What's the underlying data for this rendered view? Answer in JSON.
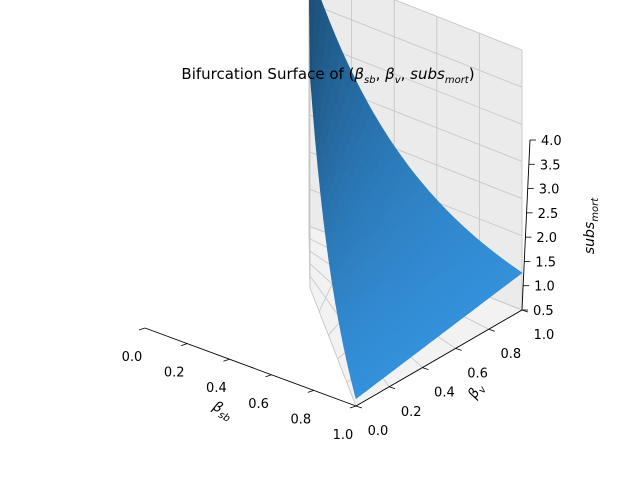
{
  "chart_data": {
    "type": "surface",
    "title": "Bifurcation Surface of (β_sb, β_v, subs_mort)",
    "title_parts": {
      "prefix": "Bifurcation Surface of (",
      "b1": "β",
      "b1_sub": "sb",
      "sep1": ", ",
      "b2": "β",
      "b2_sub": "v",
      "sep2": ", ",
      "z": "subs",
      "z_sub": "mort",
      "suffix": ")"
    },
    "xlabel": "β_sb",
    "xlabel_parts": {
      "main": "β",
      "sub": "sb"
    },
    "ylabel": "β_v",
    "ylabel_parts": {
      "main": "β",
      "sub": "v"
    },
    "zlabel": "subs_mort",
    "zlabel_parts": {
      "main": "subs",
      "sub": "mort"
    },
    "xlim": [
      0.0,
      1.0
    ],
    "ylim": [
      0.0,
      1.0
    ],
    "zlim": [
      0.5,
      4.0
    ],
    "x_ticks": [
      "0.0",
      "0.2",
      "0.4",
      "0.6",
      "0.8",
      "1.0"
    ],
    "y_ticks": [
      "0.0",
      "0.2",
      "0.4",
      "0.6",
      "0.8",
      "1.0"
    ],
    "z_ticks": [
      "0.5",
      "1.0",
      "1.5",
      "2.0",
      "2.5",
      "3.0",
      "3.5",
      "4.0"
    ],
    "grid": true,
    "surface_color": "#2b77b4",
    "surface_corners": [
      {
        "beta_sb": 0.0,
        "beta_v": 0.0,
        "subs_mort": 3.4
      },
      {
        "beta_sb": 0.0,
        "beta_v": 1.0,
        "subs_mort": 4.0
      },
      {
        "beta_sb": 1.0,
        "beta_v": 1.0,
        "subs_mort": 1.0
      },
      {
        "beta_sb": 1.0,
        "beta_v": 0.0,
        "subs_mort": 0.6
      }
    ]
  }
}
